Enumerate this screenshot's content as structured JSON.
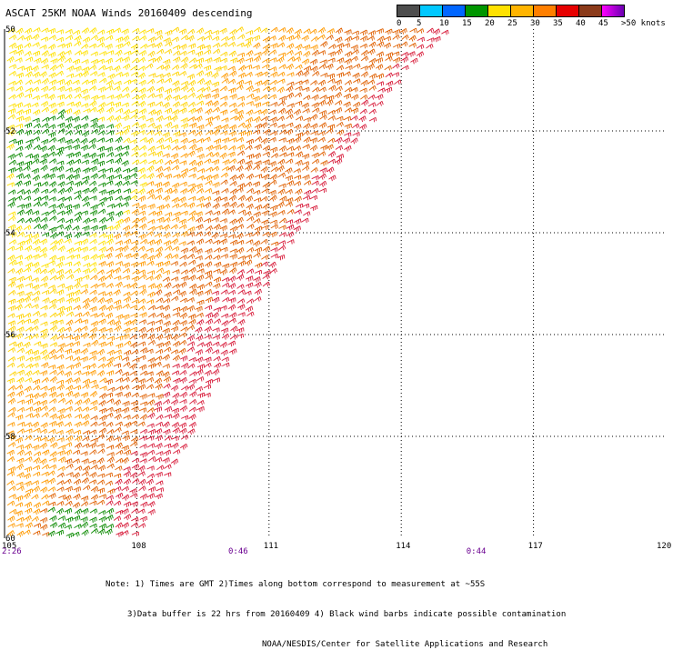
{
  "title": "ASCAT 25KM NOAA Winds 20160409 descending",
  "scale": {
    "colors": [
      "#4d4d4d",
      "#00c8ff",
      "#0066ff",
      "#009600",
      "#ffe100",
      "#ffb400",
      "#ff7f00",
      "#e60000",
      "#8b3a1a",
      "#ff00ff",
      "#6a00b0"
    ],
    "labels": [
      "0",
      "5",
      "10",
      "15",
      "20",
      "25",
      "30",
      "35",
      "40",
      "45",
      ">50 knots"
    ]
  },
  "map": {
    "lon_ticks": [
      "105",
      "108",
      "111",
      "114",
      "117",
      "120"
    ],
    "lat_ticks": [
      "50",
      "52",
      "54",
      "56",
      "58",
      "60"
    ],
    "time_labels": [
      {
        "text": "2:26",
        "lon": 105
      },
      {
        "text": "0:46",
        "lon": 110.2
      },
      {
        "text": "0:44",
        "lon": 115.6
      }
    ],
    "barb_colors": {
      "light": "#ffe100",
      "yellow": "#ffd200",
      "orange": "#ff9a00",
      "dark_orange": "#e06000",
      "red": "#d81e3c",
      "green": "#0a8a00"
    }
  },
  "notes": {
    "line1": "Note: 1) Times are GMT 2)Times along bottom correspond to measurement at ~55S",
    "line2": "3)Data buffer is 22 hrs from 20160409 4) Black wind barbs indicate possible contamination",
    "line3": "NOAA/NESDIS/Center for Satellite Applications and Research"
  }
}
